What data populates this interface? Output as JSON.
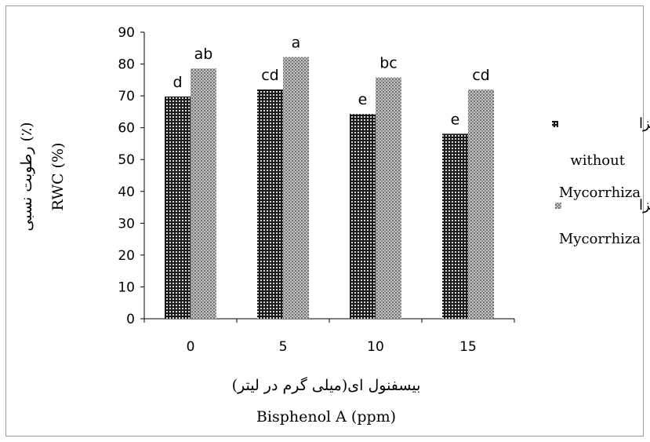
{
  "chart_data": {
    "type": "bar",
    "categories": [
      "0",
      "5",
      "10",
      "15"
    ],
    "series": [
      {
        "name": "بدون مایکوریزا",
        "name_en": "without Mycorrhiza",
        "values": [
          69.8,
          72,
          64.3,
          58.1
        ],
        "letters": [
          "d",
          "cd",
          "e",
          "e"
        ],
        "pattern": "dark-check"
      },
      {
        "name": "با مایکوریزا",
        "name_en": "Mycorrhiza",
        "values": [
          78.6,
          82.2,
          75.8,
          72
        ],
        "letters": [
          "ab",
          "a",
          "bc",
          "cd"
        ],
        "pattern": "light-check"
      }
    ],
    "xlabel_fa": "بیسفنول ای(میلی گرم در لیتر)",
    "xlabel_en": "Bisphenol A (ppm)",
    "ylabel_fa": "رطوبت نسبی (٪)",
    "ylabel_en": "RWC (%)",
    "ylim": [
      0,
      90
    ],
    "yticks": [
      "0",
      "10",
      "20",
      "30",
      "40",
      "50",
      "60",
      "70",
      "80",
      "90"
    ],
    "grid": false,
    "legend_position": "right"
  }
}
